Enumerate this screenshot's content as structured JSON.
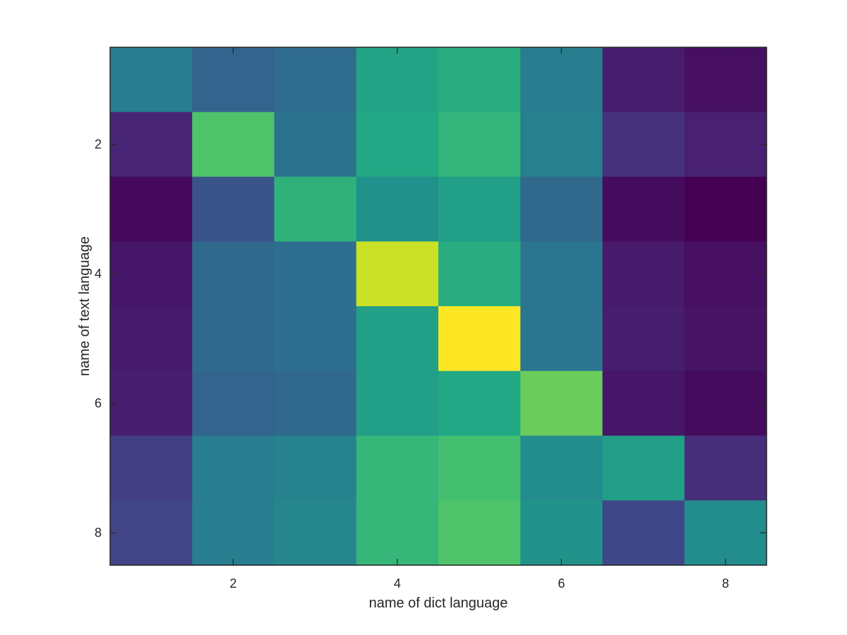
{
  "chart_data": {
    "type": "heatmap",
    "colormap": "viridis",
    "xlabel": "name of dict language",
    "ylabel": "name of text language",
    "x": [
      1,
      2,
      3,
      4,
      5,
      6,
      7,
      8
    ],
    "y": [
      1,
      2,
      3,
      4,
      5,
      6,
      7,
      8
    ],
    "xlim": [
      0.5,
      8.5
    ],
    "ylim": [
      0.5,
      8.5
    ],
    "y_direction": "reverse",
    "xticks": [
      2,
      4,
      6,
      8
    ],
    "yticks": [
      2,
      4,
      6,
      8
    ],
    "xtick_labels": [
      "2",
      "4",
      "6",
      "8"
    ],
    "ytick_labels": [
      "2",
      "4",
      "6",
      "8"
    ],
    "color_range": [
      0,
      1
    ],
    "values": [
      [
        0.42,
        0.32,
        0.35,
        0.58,
        0.62,
        0.42,
        0.08,
        0.04
      ],
      [
        0.1,
        0.72,
        0.38,
        0.6,
        0.65,
        0.43,
        0.14,
        0.09
      ],
      [
        0.02,
        0.26,
        0.64,
        0.5,
        0.56,
        0.34,
        0.03,
        0.0
      ],
      [
        0.06,
        0.34,
        0.36,
        0.92,
        0.62,
        0.39,
        0.07,
        0.04
      ],
      [
        0.07,
        0.34,
        0.36,
        0.56,
        1.0,
        0.39,
        0.08,
        0.05
      ],
      [
        0.08,
        0.32,
        0.34,
        0.56,
        0.6,
        0.77,
        0.06,
        0.03
      ],
      [
        0.18,
        0.42,
        0.44,
        0.66,
        0.7,
        0.48,
        0.55,
        0.13
      ],
      [
        0.2,
        0.42,
        0.46,
        0.66,
        0.72,
        0.51,
        0.21,
        0.48
      ]
    ]
  }
}
